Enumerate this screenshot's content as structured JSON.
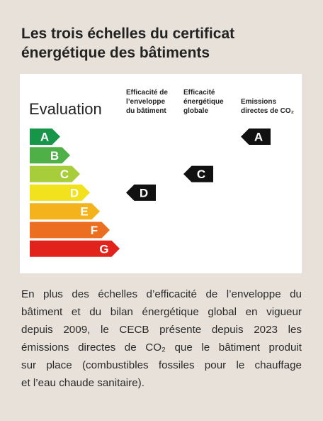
{
  "header": {
    "title": [
      "Les trois échelles du certificat",
      "énergétique des bâtiments"
    ]
  },
  "panel": {
    "heading": "Evaluation",
    "scale": [
      {
        "label": "A",
        "color": "#17964a"
      },
      {
        "label": "B",
        "color": "#4fb048"
      },
      {
        "label": "C",
        "color": "#a8cd3a"
      },
      {
        "label": "D",
        "color": "#f2e21e"
      },
      {
        "label": "E",
        "color": "#f4b31d"
      },
      {
        "label": "F",
        "color": "#ec6e20"
      },
      {
        "label": "G",
        "color": "#e2231c"
      }
    ],
    "columns": [
      {
        "header": [
          "Efficacité de",
          "l’enveloppe",
          "du bâtiment"
        ],
        "rating": "D"
      },
      {
        "header": [
          "Efficacité",
          "énergétique",
          "globale"
        ],
        "rating": "C"
      },
      {
        "header": [
          "Emissions",
          "directes de CO₂"
        ],
        "rating": "A"
      }
    ]
  },
  "paragraph": [
    "En plus des échelles d’efficacité de l’enveloppe du",
    "bâtiment et du bilan énergétique global en vigueur",
    "depuis 2009, le CECB présente depuis 2023 les",
    "émissions directes de CO₂ que le bâtiment produit",
    "sur place (combustibles fossiles pour le chauffage",
    "et l’eau chaude sanitaire)."
  ]
}
